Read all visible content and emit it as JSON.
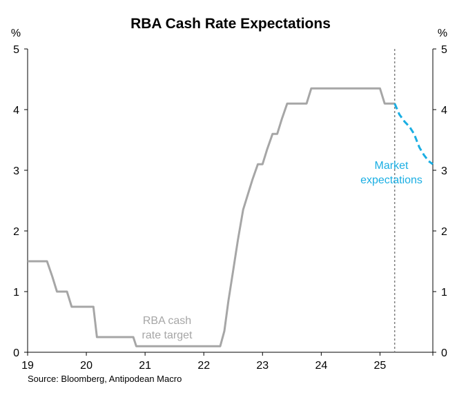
{
  "chart_data": {
    "type": "line",
    "title": "RBA Cash Rate Expectations",
    "y_unit_left": "%",
    "y_unit_right": "%",
    "ylim": [
      0,
      5
    ],
    "yticks": [
      0,
      1,
      2,
      3,
      4,
      5
    ],
    "xlim": [
      19,
      25.9
    ],
    "xticks": [
      19,
      20,
      21,
      22,
      23,
      24,
      25
    ],
    "xtick_labels": [
      "19",
      "20",
      "21",
      "22",
      "23",
      "24",
      "25"
    ],
    "grid": false,
    "source": "Source: Bloomberg, Antipodean Macro",
    "forecast_marker_x": 25.25,
    "series": [
      {
        "name": "RBA cash rate target",
        "label_lines": [
          "RBA cash",
          "rate target"
        ],
        "color": "#a6a6a6",
        "style": "solid",
        "points": [
          [
            19.0,
            1.5
          ],
          [
            19.33,
            1.5
          ],
          [
            19.42,
            1.25
          ],
          [
            19.5,
            1.0
          ],
          [
            19.67,
            1.0
          ],
          [
            19.75,
            0.75
          ],
          [
            20.12,
            0.75
          ],
          [
            20.18,
            0.25
          ],
          [
            20.8,
            0.25
          ],
          [
            20.85,
            0.1
          ],
          [
            22.28,
            0.1
          ],
          [
            22.35,
            0.35
          ],
          [
            22.42,
            0.85
          ],
          [
            22.5,
            1.35
          ],
          [
            22.58,
            1.85
          ],
          [
            22.67,
            2.35
          ],
          [
            22.75,
            2.6
          ],
          [
            22.83,
            2.85
          ],
          [
            22.92,
            3.1
          ],
          [
            23.0,
            3.1
          ],
          [
            23.08,
            3.35
          ],
          [
            23.17,
            3.6
          ],
          [
            23.25,
            3.6
          ],
          [
            23.33,
            3.85
          ],
          [
            23.42,
            4.1
          ],
          [
            23.75,
            4.1
          ],
          [
            23.83,
            4.35
          ],
          [
            25.0,
            4.35
          ],
          [
            25.08,
            4.1
          ],
          [
            25.25,
            4.1
          ]
        ]
      },
      {
        "name": "Market expectations",
        "label_lines": [
          "Market",
          "expectations"
        ],
        "color": "#1aaee3",
        "style": "dashed",
        "points": [
          [
            25.25,
            4.1
          ],
          [
            25.33,
            3.92
          ],
          [
            25.42,
            3.8
          ],
          [
            25.5,
            3.72
          ],
          [
            25.58,
            3.6
          ],
          [
            25.67,
            3.38
          ],
          [
            25.75,
            3.25
          ],
          [
            25.83,
            3.15
          ],
          [
            25.9,
            3.1
          ]
        ]
      }
    ]
  }
}
